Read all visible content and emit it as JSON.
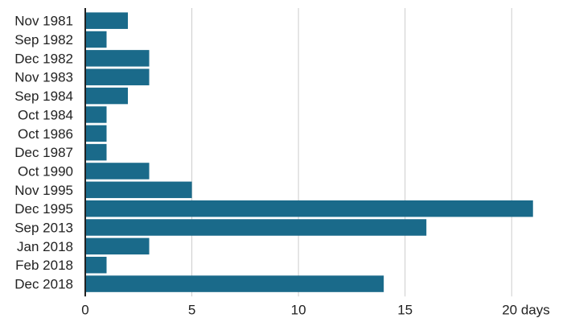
{
  "chart_data": {
    "type": "bar",
    "orientation": "horizontal",
    "categories": [
      "Nov 1981",
      "Sep 1982",
      "Dec 1982",
      "Nov 1983",
      "Sep 1984",
      "Oct 1984",
      "Oct 1986",
      "Dec 1987",
      "Oct 1990",
      "Nov 1995",
      "Dec 1995",
      "Sep 2013",
      "Jan 2018",
      "Feb 2018",
      "Dec 2018"
    ],
    "values": [
      2,
      1,
      3,
      3,
      2,
      1,
      1,
      1,
      3,
      5,
      21,
      16,
      3,
      1,
      14
    ],
    "xlim": [
      0,
      21.5
    ],
    "xticks": [
      0,
      5,
      10,
      15,
      20
    ],
    "xtick_labels": [
      "0",
      "5",
      "10",
      "15",
      "20 days"
    ],
    "title": "",
    "xlabel": "",
    "ylabel": "",
    "grid": "vertical",
    "legend": "none",
    "bar_color": "#1a6a8a",
    "grid_color": "#cccccc",
    "axis_color": "#222222"
  }
}
